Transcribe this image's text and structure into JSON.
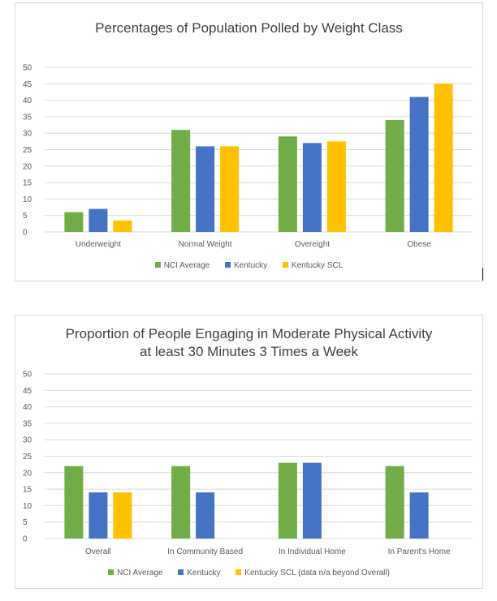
{
  "chart_data": [
    {
      "type": "bar",
      "title_lines": [
        "Percentages of Population Polled by Weight Class"
      ],
      "categories": [
        "Underweight",
        "Normal Weight",
        "Overeight",
        "Obese"
      ],
      "series": [
        {
          "name": "NCI Average",
          "color": "#70ad47",
          "values": [
            6,
            31,
            29,
            34
          ]
        },
        {
          "name": "Kentucky",
          "color": "#4472c4",
          "values": [
            7,
            26,
            27,
            41
          ]
        },
        {
          "name": "Kentucky SCL",
          "color": "#ffc000",
          "values": [
            3.5,
            26,
            27.5,
            45
          ]
        }
      ],
      "ylim": [
        0,
        50
      ],
      "yticks": [
        "0",
        "5",
        "10",
        "15",
        "20",
        "25",
        "30",
        "35",
        "40",
        "45",
        "50"
      ],
      "grid": true,
      "legend": "bottom"
    },
    {
      "type": "bar",
      "title_lines": [
        "Proportion of People Engaging in Moderate Physical Activity",
        "at least 30 Minutes 3 Times a Week"
      ],
      "categories": [
        "Overall",
        "In Community Based",
        "In Individual Home",
        "In Parent's Home"
      ],
      "series": [
        {
          "name": "NCI Average",
          "color": "#70ad47",
          "values": [
            22,
            22,
            23,
            22
          ]
        },
        {
          "name": "Kentucky",
          "color": "#4472c4",
          "values": [
            14,
            14,
            23,
            14
          ]
        },
        {
          "name": "Kentucky SCL (data n/a beyond Overall)",
          "color": "#ffc000",
          "values": [
            14,
            null,
            null,
            null
          ]
        }
      ],
      "ylim": [
        0,
        50
      ],
      "yticks": [
        "0",
        "5",
        "10",
        "15",
        "20",
        "25",
        "30",
        "35",
        "40",
        "45",
        "50"
      ],
      "grid": true,
      "legend": "bottom"
    }
  ]
}
